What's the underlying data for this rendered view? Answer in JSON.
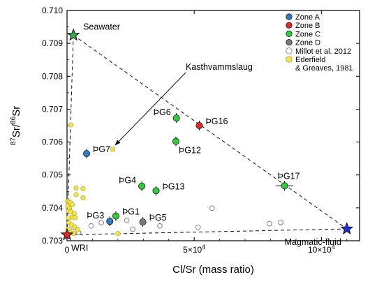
{
  "chart_data": {
    "type": "scatter",
    "xlabel": "Cl/Sr (mass ratio)",
    "ylabel_prefix_sup1": "87",
    "ylabel_mid": "Sr/",
    "ylabel_prefix_sup2": "86",
    "ylabel_end": "Sr",
    "xlim": [
      0,
      115000
    ],
    "ylim": [
      0.703,
      0.71
    ],
    "x_ticks": [
      0,
      50000,
      100000
    ],
    "x_tick_labels": [
      "0",
      "5×10",
      "10×10"
    ],
    "x_tick_sup": [
      "",
      "4",
      "4"
    ],
    "y_ticks": [
      0.703,
      0.704,
      0.705,
      0.706,
      0.707,
      0.708,
      0.709,
      0.71
    ],
    "y_tick_labels": [
      "0.703",
      "0.704",
      "0.705",
      "0.706",
      "0.707",
      "0.708",
      "0.709",
      "0.710"
    ],
    "grid": false,
    "legend_position": "top-right",
    "legend": [
      {
        "label": "Zone A",
        "marker": "circle",
        "fill": "#2e7bcf",
        "stroke": "#1a1a1a"
      },
      {
        "label": "Zone B",
        "marker": "circle",
        "fill": "#e02a24",
        "stroke": "#1a1a1a"
      },
      {
        "label": "Zone C",
        "marker": "circle",
        "fill": "#2fcc3b",
        "stroke": "#1a1a1a"
      },
      {
        "label": "Zone D",
        "marker": "circle",
        "fill": "#7a7a7a",
        "stroke": "#1a1a1a"
      },
      {
        "label": "Millot et al. 2012",
        "marker": "circle",
        "fill": "#ffffff",
        "stroke": "#777777"
      },
      {
        "label": "Ederfield",
        "label2": "& Greaves, 1981",
        "marker": "circle",
        "fill": "#f3e84a",
        "stroke": "#b0a030"
      }
    ],
    "endmembers": [
      {
        "label": "Seawater",
        "x": 2500,
        "y": 0.70925,
        "fill": "#2fb04a",
        "label_pos": "right"
      },
      {
        "label": "WRI",
        "x": 0,
        "y": 0.70318,
        "fill": "#e02a24",
        "label_pos": "below-right"
      },
      {
        "label": "Magmatic-fluid",
        "x": 110000,
        "y": 0.70336,
        "fill": "#1f2fe0",
        "label_pos": "below-left"
      }
    ],
    "mixing_lines": [
      [
        {
          "x": 2500,
          "y": 0.70925
        },
        {
          "x": 110000,
          "y": 0.70336
        }
      ],
      [
        {
          "x": 0,
          "y": 0.70318
        },
        {
          "x": 110000,
          "y": 0.70336
        }
      ],
      [
        {
          "x": 2500,
          "y": 0.70925
        },
        {
          "x": 0,
          "y": 0.70318
        }
      ]
    ],
    "samples": [
      {
        "label": "ÞG7",
        "zone": "Zone A",
        "x": 7700,
        "y": 0.70565,
        "xerr": 0,
        "label_pos": "right"
      },
      {
        "label": "ÞG3",
        "zone": "Zone A",
        "x": 16800,
        "y": 0.70359,
        "xerr": 0,
        "label_pos": "left"
      },
      {
        "label": "ÞG16",
        "zone": "Zone B",
        "x": 52000,
        "y": 0.7065,
        "xerr": 0,
        "label_pos": "right"
      },
      {
        "label": "ÞG6",
        "zone": "Zone C",
        "x": 43000,
        "y": 0.70673,
        "xerr": 0,
        "label_pos": "left"
      },
      {
        "label": "ÞG12",
        "zone": "Zone C",
        "x": 42800,
        "y": 0.70602,
        "xerr": 0,
        "label_pos": "below-right"
      },
      {
        "label": "ÞG4",
        "zone": "Zone C",
        "x": 29400,
        "y": 0.70466,
        "xerr": 0,
        "label_pos": "left"
      },
      {
        "label": "ÞG13",
        "zone": "Zone C",
        "x": 35000,
        "y": 0.70452,
        "xerr": 0,
        "label_pos": "right"
      },
      {
        "label": "ÞG1",
        "zone": "Zone C",
        "x": 19200,
        "y": 0.70375,
        "xerr": 0,
        "label_pos": "right"
      },
      {
        "label": "ÞG17",
        "zone": "Zone C",
        "x": 85500,
        "y": 0.70467,
        "xerr": 3500,
        "label_pos": "above"
      },
      {
        "label": "ÞG5",
        "zone": "Zone D",
        "x": 29800,
        "y": 0.70357,
        "xerr": 0,
        "label_pos": "right"
      }
    ],
    "millot_2012": [
      {
        "x": 2500,
        "y": 0.7034
      },
      {
        "x": 4500,
        "y": 0.70325
      },
      {
        "x": 9500,
        "y": 0.70345
      },
      {
        "x": 13500,
        "y": 0.70355
      },
      {
        "x": 23500,
        "y": 0.70362
      },
      {
        "x": 25800,
        "y": 0.70335
      },
      {
        "x": 36500,
        "y": 0.70345
      },
      {
        "x": 51500,
        "y": 0.70341
      },
      {
        "x": 57000,
        "y": 0.70399
      },
      {
        "x": 79500,
        "y": 0.70352
      },
      {
        "x": 84000,
        "y": 0.70356
      }
    ],
    "ederfield_1981": [
      {
        "x": 1500,
        "y": 0.70652
      },
      {
        "x": 18000,
        "y": 0.70578
      },
      {
        "x": 20000,
        "y": 0.70322
      },
      {
        "x": 200,
        "y": 0.7042
      },
      {
        "x": 800,
        "y": 0.70418
      },
      {
        "x": 1500,
        "y": 0.70415
      },
      {
        "x": 300,
        "y": 0.70405
      },
      {
        "x": 1000,
        "y": 0.70398
      },
      {
        "x": 2000,
        "y": 0.7041
      },
      {
        "x": 600,
        "y": 0.7039
      },
      {
        "x": 1500,
        "y": 0.70388
      },
      {
        "x": 2800,
        "y": 0.70383
      },
      {
        "x": 500,
        "y": 0.7037
      },
      {
        "x": 2200,
        "y": 0.70372
      },
      {
        "x": 800,
        "y": 0.70355
      },
      {
        "x": 1800,
        "y": 0.70348
      },
      {
        "x": 3000,
        "y": 0.70342
      },
      {
        "x": 300,
        "y": 0.70335
      },
      {
        "x": 4200,
        "y": 0.70333
      },
      {
        "x": 1200,
        "y": 0.70325
      },
      {
        "x": 2600,
        "y": 0.70322
      },
      {
        "x": 3600,
        "y": 0.7046
      },
      {
        "x": 3600,
        "y": 0.7044
      },
      {
        "x": 6300,
        "y": 0.70458
      },
      {
        "x": 6300,
        "y": 0.7043
      },
      {
        "x": 3200,
        "y": 0.7037
      }
    ],
    "annotation": {
      "text": "Kasthvammslaug",
      "target_x": 18200,
      "target_y": 0.70585
    }
  },
  "colors": {
    "axis": "#000000",
    "line": "#111111",
    "zone_a": "#2e7bcf",
    "zone_b": "#e02a24",
    "zone_c": "#2fcc3b",
    "zone_d": "#7a7a7a",
    "millot": "#ffffff",
    "ederfield": "#f3e84a"
  }
}
